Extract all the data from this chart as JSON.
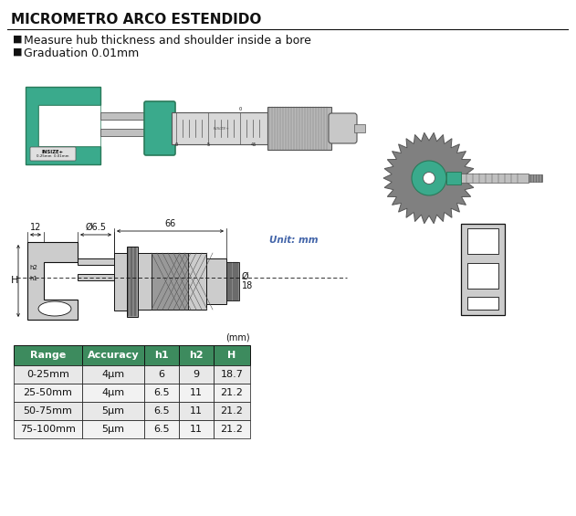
{
  "title": "MICROMETRO ARCO ESTENDIDO",
  "bullet1": "Measure hub thickness and shoulder inside a bore",
  "bullet2": "Graduation 0.01mm",
  "unit_label": "Unit: mm",
  "mm_label": "(mm)",
  "dim_12": "12",
  "dim_65": "Ø6.5",
  "dim_66": "66",
  "dim_18": "Ø18",
  "dim_H": "H",
  "table_headers": [
    "Range",
    "Accuracy",
    "h1",
    "h2",
    "H"
  ],
  "table_rows": [
    [
      "0-25mm",
      "4μm",
      "6",
      "9",
      "18.7"
    ],
    [
      "25-50mm",
      "4μm",
      "6.5",
      "11",
      "21.2"
    ],
    [
      "50-75mm",
      "5μm",
      "6.5",
      "11",
      "21.2"
    ],
    [
      "75-100mm",
      "5μm",
      "6.5",
      "11",
      "21.2"
    ]
  ],
  "header_color": "#3d8b5e",
  "row_color_odd": "#e8e8e8",
  "row_color_even": "#f2f2f2",
  "white": "#ffffff",
  "teal_color": "#3aaa8c",
  "dark_teal": "#2a7a5a",
  "dark_gray": "#555555",
  "light_gray": "#cccccc",
  "mid_gray": "#999999",
  "silver": "#c0c0c0",
  "black": "#111111",
  "blue_text": "#4466aa",
  "title_fontsize": 11,
  "bullet_fontsize": 9,
  "table_fontsize": 8,
  "dim_fontsize": 7,
  "unit_fontsize": 7.5
}
